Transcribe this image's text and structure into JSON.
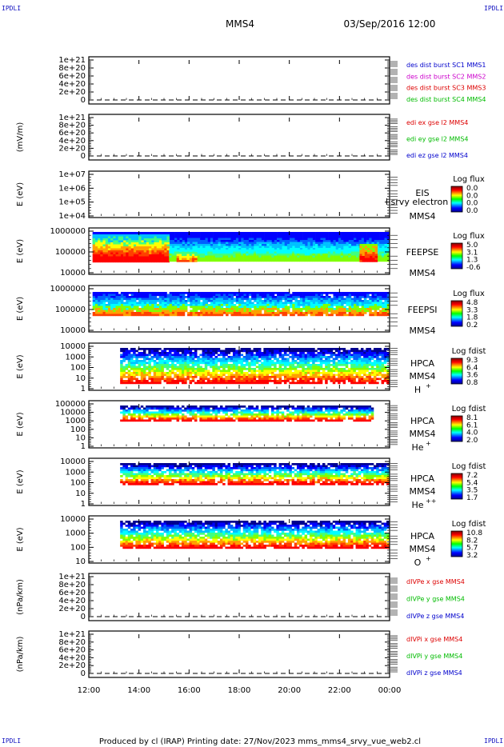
{
  "corners": {
    "top_left": "IPDLI",
    "top_right": "IPDLI",
    "bottom_left": "IPDLI",
    "bottom_right": "IPDLI"
  },
  "header": {
    "spacecraft": "MMS4",
    "datetime": "03/Sep/2016 12:00"
  },
  "footer": "Produced by cl (IRAP)   Printing date: 27/Nov/2023   mms_mms4_srvy_vue_web2.cl",
  "colors": {
    "red": "#dd0000",
    "magenta": "#cc00cc",
    "green": "#00bb00",
    "blue": "#0000cc",
    "frame": "#000000"
  },
  "chart_data": [
    {
      "type": "line",
      "title": "",
      "ylabel": "",
      "yticks": [
        "1e+21",
        "8e+20",
        "6e+20",
        "4e+20",
        "2e+20",
        "0"
      ],
      "zero_dashed": true,
      "series": [
        {
          "name": "des dist burst SC1 MMS1",
          "color": "blue"
        },
        {
          "name": "des dist burst SC2 MMS2",
          "color": "magenta"
        },
        {
          "name": "des dist burst SC3 MMS3",
          "color": "red"
        },
        {
          "name": "des dist burst SC4 MMS4",
          "color": "green"
        }
      ]
    },
    {
      "type": "line",
      "ylabel": "(mV/m)",
      "yticks": [
        "1e+21",
        "8e+20",
        "6e+20",
        "4e+20",
        "2e+20",
        "0"
      ],
      "zero_dashed": true,
      "series": [
        {
          "name": "edi ex gse l2 MMS4",
          "color": "red"
        },
        {
          "name": "edi ey gse l2 MMS4",
          "color": "green"
        },
        {
          "name": "edi ez gse l2 MMS4",
          "color": "blue"
        }
      ]
    },
    {
      "type": "heatmap",
      "ylabel": "E (eV)",
      "yticks": [
        "1e+07",
        "1e+06",
        "1e+05",
        "1e+04"
      ],
      "labels": [
        "EIS",
        "MMS4"
      ],
      "overlay": "l srvy electron to",
      "colorbar": {
        "title": "Log flux",
        "ticks": [
          "0.0",
          "0.0",
          "0.0",
          "0.0"
        ]
      }
    },
    {
      "type": "heatmap",
      "ylabel": "E (eV)",
      "yticks": [
        "1000000",
        "100000",
        "10000"
      ],
      "labels": [
        "FEEPSE",
        "MMS4"
      ],
      "colorbar": {
        "title": "Log flux",
        "ticks": [
          "5.0",
          "3.1",
          "1.3",
          "-0.6"
        ]
      }
    },
    {
      "type": "heatmap",
      "ylabel": "E (eV)",
      "yticks": [
        "1000000",
        "100000",
        "10000"
      ],
      "labels": [
        "FEEPSI",
        "MMS4"
      ],
      "colorbar": {
        "title": "Log flux",
        "ticks": [
          "4.8",
          "3.3",
          "1.8",
          "0.2"
        ]
      }
    },
    {
      "type": "heatmap",
      "ylabel": "E (eV)",
      "yticks": [
        "10000",
        "1000",
        "100",
        "10",
        "1"
      ],
      "labels": [
        "HPCA",
        "MMS4"
      ],
      "species": "H",
      "species_sup": "+",
      "colorbar": {
        "title": "Log fdist",
        "ticks": [
          "9.3",
          "6.4",
          "3.6",
          "0.8"
        ]
      }
    },
    {
      "type": "heatmap",
      "ylabel": "E (eV)",
      "yticks": [
        "100000",
        "10000",
        "1000",
        "100",
        "10",
        "1"
      ],
      "labels": [
        "HPCA",
        "MMS4"
      ],
      "species": "He",
      "species_sup": "+",
      "colorbar": {
        "title": "Log fdist",
        "ticks": [
          "8.1",
          "6.1",
          "4.0",
          "2.0"
        ]
      }
    },
    {
      "type": "heatmap",
      "ylabel": "E (eV)",
      "yticks": [
        "10000",
        "1000",
        "100",
        "10",
        "1"
      ],
      "labels": [
        "HPCA",
        "MMS4"
      ],
      "species": "He",
      "species_sup": "++",
      "colorbar": {
        "title": "Log fdist",
        "ticks": [
          "7.2",
          "5.4",
          "3.5",
          "1.7"
        ]
      }
    },
    {
      "type": "heatmap",
      "ylabel": "E (eV)",
      "yticks": [
        "10000",
        "1000",
        "100",
        "10"
      ],
      "labels": [
        "HPCA",
        "MMS4"
      ],
      "species": "O",
      "species_sup": "+",
      "colorbar": {
        "title": "Log fdist",
        "ticks": [
          "10.8",
          "8.2",
          "5.7",
          "3.2"
        ]
      }
    },
    {
      "type": "line",
      "ylabel": "(nPa/km)",
      "yticks": [
        "1e+21",
        "8e+20",
        "6e+20",
        "4e+20",
        "2e+20",
        "0"
      ],
      "zero_dashed": true,
      "series": [
        {
          "name": "dIVPe x gse MMS4",
          "color": "red"
        },
        {
          "name": "dIVPe y gse MMS4",
          "color": "green"
        },
        {
          "name": "dIVPe z gse MMS4",
          "color": "blue"
        }
      ]
    },
    {
      "type": "line",
      "ylabel": "(nPa/km)",
      "yticks": [
        "1e+21",
        "8e+20",
        "6e+20",
        "4e+20",
        "2e+20",
        "0"
      ],
      "zero_dashed": true,
      "series": [
        {
          "name": "dIVPi x gse MMS4",
          "color": "red"
        },
        {
          "name": "dIVPi y gse MMS4",
          "color": "green"
        },
        {
          "name": "dIVPi z gse MMS4",
          "color": "blue"
        }
      ]
    }
  ],
  "xaxis": {
    "ticks": [
      "12:00",
      "14:00",
      "16:00",
      "18:00",
      "20:00",
      "22:00",
      "00:00"
    ]
  }
}
